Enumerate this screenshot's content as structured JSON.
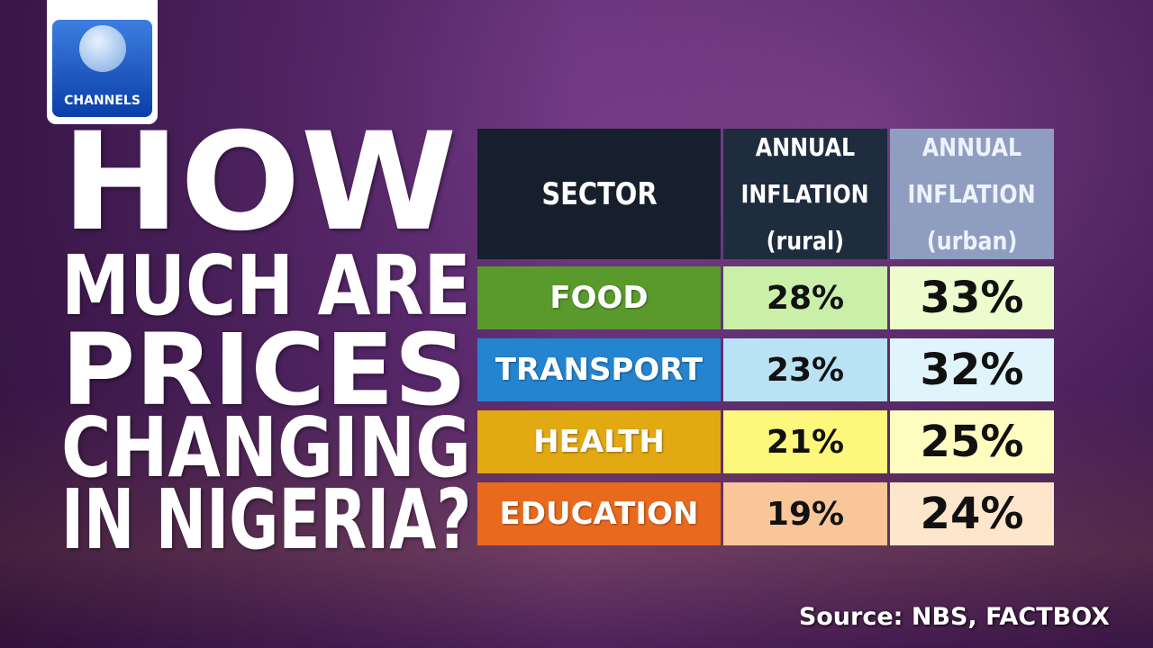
{
  "logo": {
    "label": "CHANNELS"
  },
  "title": {
    "lines": [
      "HOW",
      "MUCH ARE",
      "PRICES",
      "CHANGING",
      "IN NIGERIA?"
    ]
  },
  "table": {
    "header": [
      [
        "SECTOR"
      ],
      [
        "ANNUAL",
        "INFLATION",
        "(rural)"
      ],
      [
        "ANNUAL",
        "INFLATION",
        "(urban)"
      ]
    ],
    "rows": [
      [
        "FOOD",
        "28%",
        "33%"
      ],
      [
        "TRANSPORT",
        "23%",
        "32%"
      ],
      [
        "HEALTH",
        "21%",
        "25%"
      ],
      [
        "EDUCATION",
        "19%",
        "24%"
      ]
    ]
  },
  "source": "Source: NBS, FACTBOX"
}
